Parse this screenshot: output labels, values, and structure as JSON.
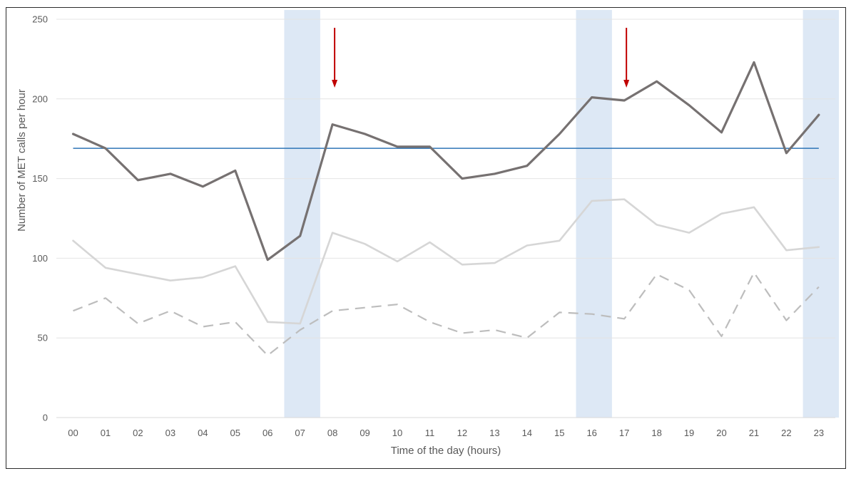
{
  "chart_data": {
    "type": "line",
    "title": "",
    "xlabel": "Time of the day (hours)",
    "ylabel": "Number of MET calls per hour",
    "categories": [
      "00",
      "01",
      "02",
      "03",
      "04",
      "05",
      "06",
      "07",
      "08",
      "09",
      "10",
      "11",
      "12",
      "13",
      "14",
      "15",
      "16",
      "17",
      "18",
      "19",
      "20",
      "21",
      "22",
      "23"
    ],
    "y_ticks": [
      0,
      50,
      100,
      150,
      200,
      250
    ],
    "ylim": [
      0,
      250
    ],
    "grid": true,
    "legend": "none",
    "series": [
      {
        "values": [
          178,
          169,
          149,
          153,
          145,
          155,
          99,
          114,
          184,
          178,
          170,
          170,
          150,
          153,
          158,
          178,
          201,
          199,
          211,
          196,
          179,
          223,
          166,
          190
        ],
        "color": "#767171",
        "style": "solid"
      },
      {
        "values": [
          111,
          94,
          90,
          86,
          88,
          95,
          60,
          59,
          116,
          109,
          98,
          110,
          96,
          97,
          108,
          111,
          136,
          137,
          121,
          116,
          128,
          132,
          105,
          107
        ],
        "color": "#d6d6d6",
        "style": "solid"
      },
      {
        "values": [
          67,
          75,
          59,
          67,
          57,
          60,
          39,
          55,
          67,
          69,
          71,
          60,
          53,
          55,
          50,
          66,
          65,
          62,
          90,
          80,
          51,
          91,
          61,
          82
        ],
        "color": "#bdbdbd",
        "style": "dashed"
      }
    ],
    "reference_line": {
      "value": 169,
      "color": "#2e75b6"
    },
    "shaded_hours": [
      "07",
      "16",
      "23"
    ],
    "shade_color": "#dde8f5",
    "arrows_at": [
      "08",
      "17"
    ],
    "arrow_color": "#c00000"
  }
}
